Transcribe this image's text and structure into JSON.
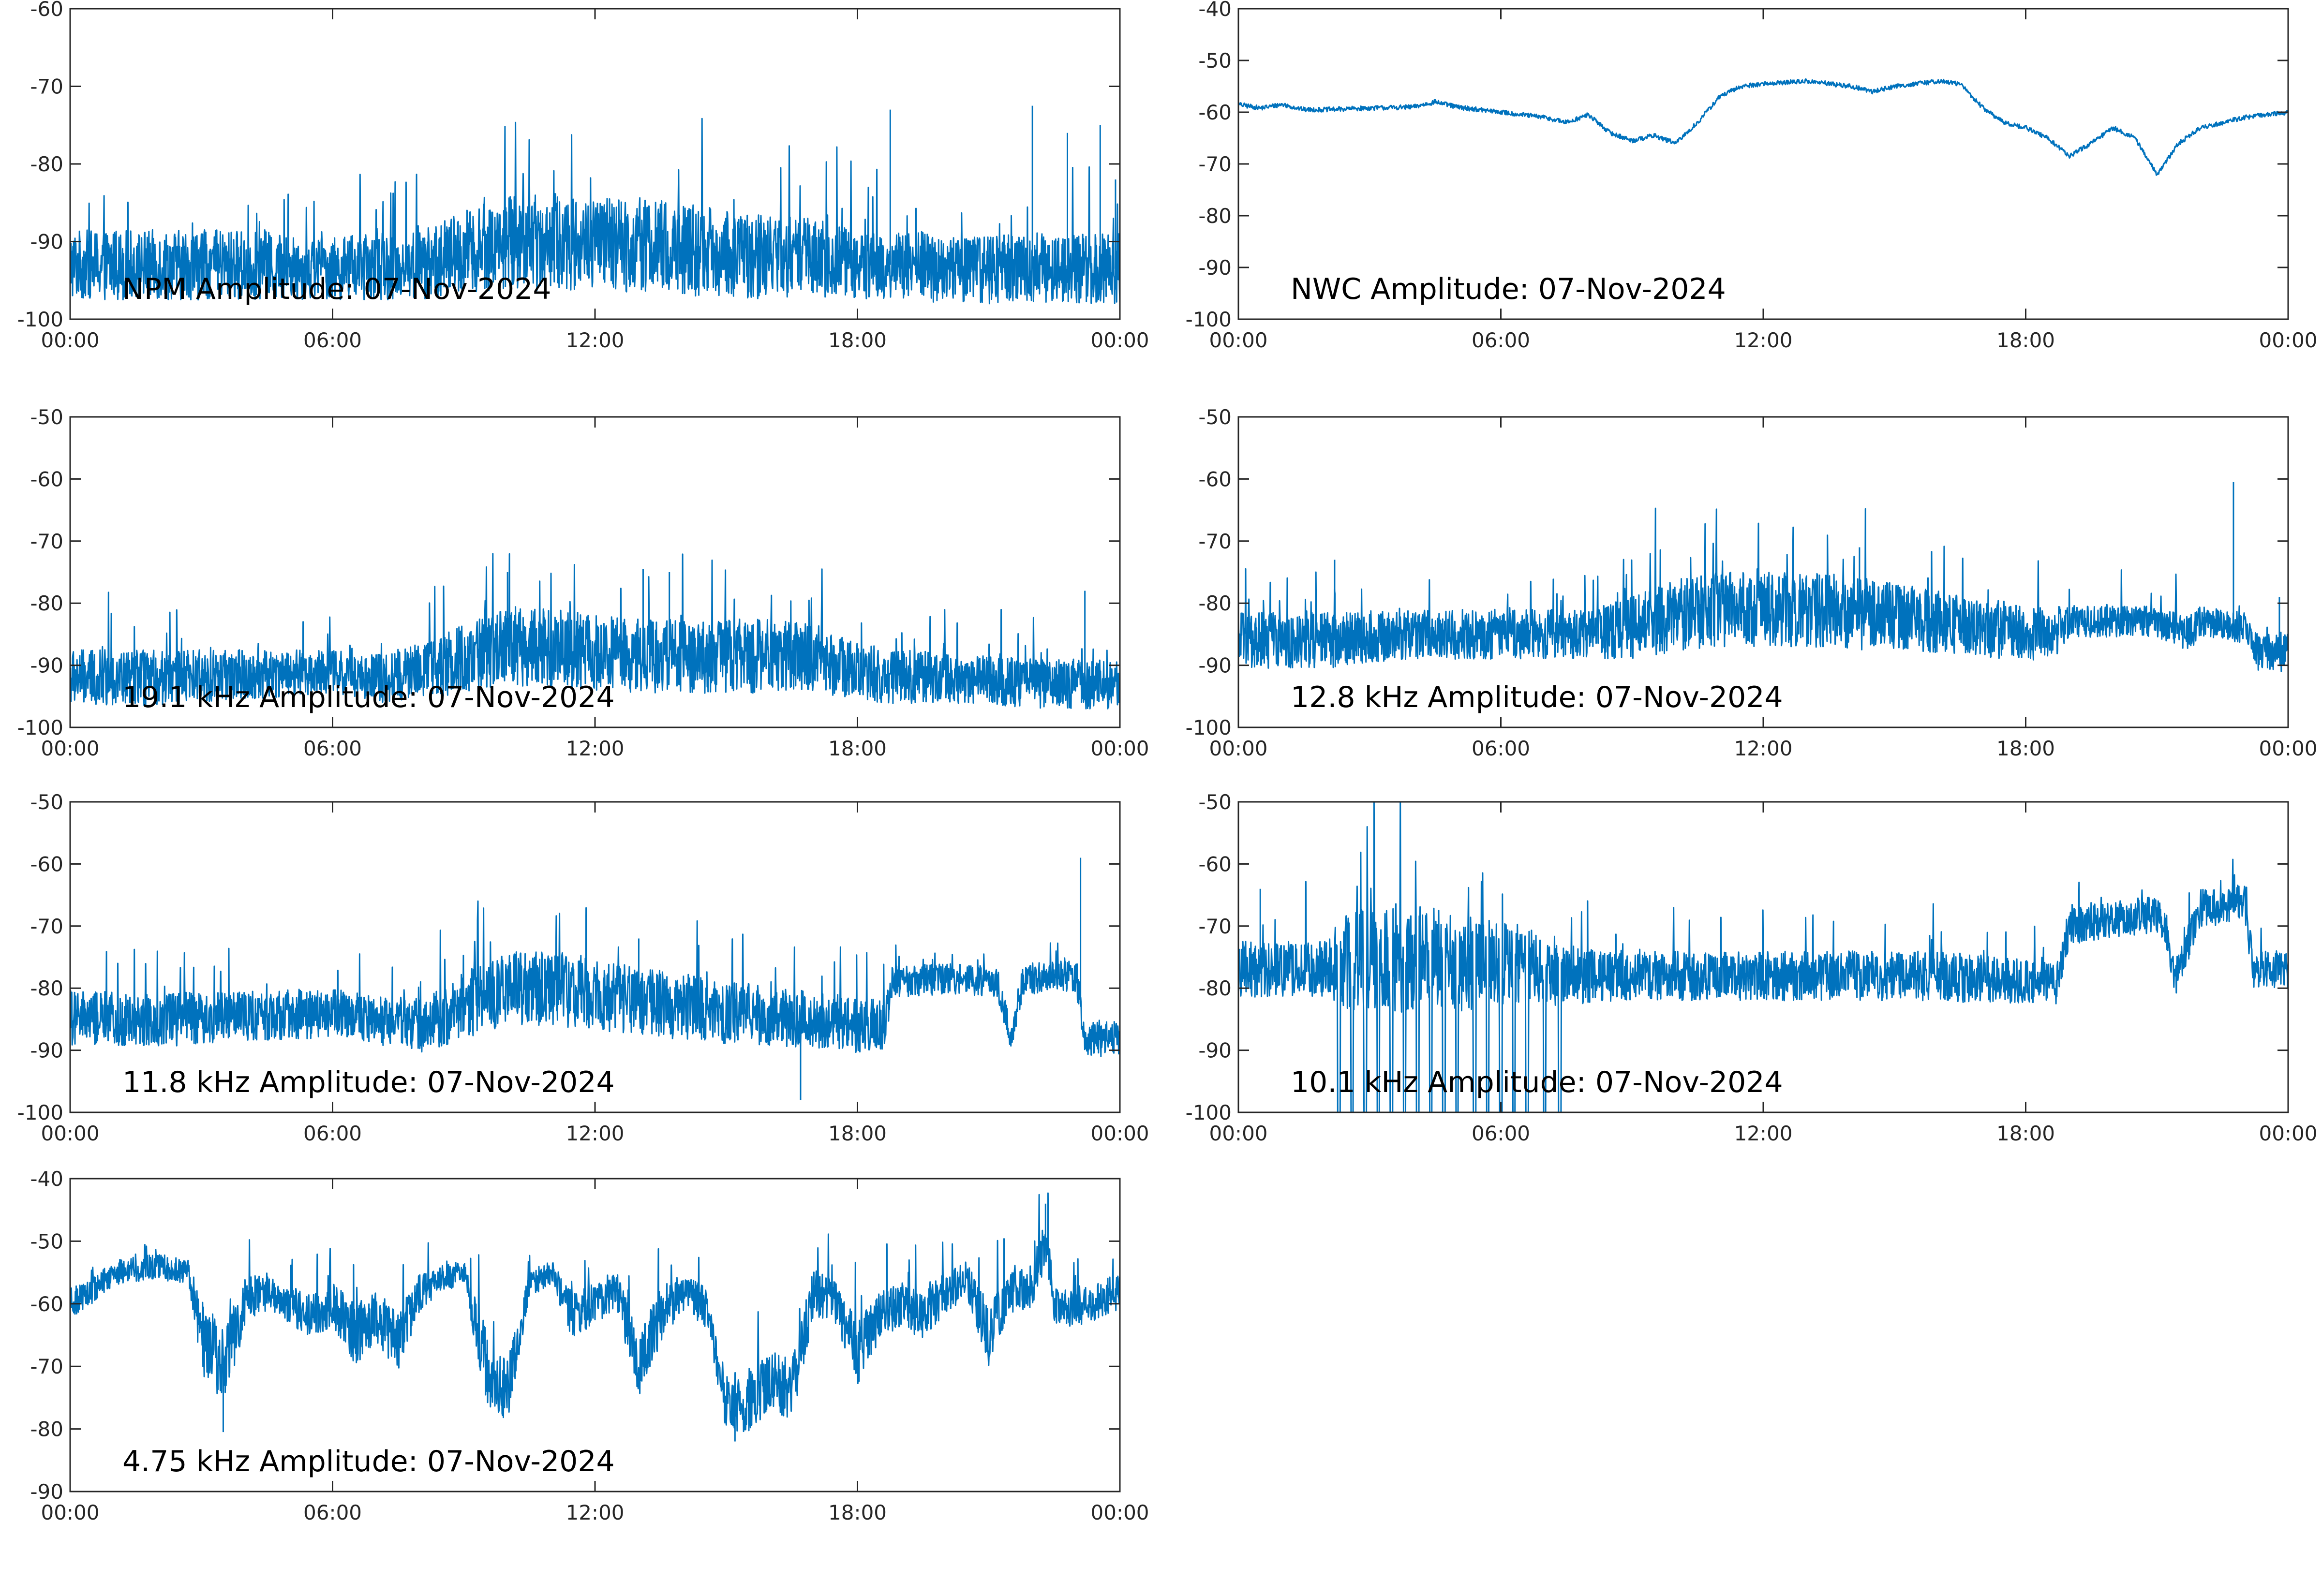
{
  "chart_data": [
    {
      "type": "line",
      "title": "NPM Amplitude: 07-Nov-2024",
      "xlim": [
        "00:00",
        "24:00"
      ],
      "ylim": [
        -100,
        -60
      ],
      "xticks": [
        "00:00",
        "06:00",
        "12:00",
        "18:00",
        "00:00"
      ],
      "yticks": [
        "-60",
        "-70",
        "-80",
        "-90",
        "-100"
      ],
      "line_color": "#0072BD",
      "grid": false,
      "series": [
        {
          "x_hours": [
            0,
            2,
            4,
            6,
            8,
            9,
            10,
            11,
            12,
            13,
            14,
            15,
            16,
            17,
            18,
            19,
            20,
            21,
            22,
            23,
            24
          ],
          "mean": [
            -93,
            -93,
            -93,
            -93.5,
            -93,
            -91.5,
            -90,
            -90,
            -90.5,
            -90.5,
            -91,
            -91.5,
            -92,
            -92,
            -93,
            -93,
            -93.5,
            -93.5,
            -93.5,
            -93.5,
            -93.5
          ],
          "spread": [
            9,
            9,
            9,
            8,
            9,
            11,
            12,
            13,
            12,
            12,
            12,
            11,
            11,
            10,
            9,
            9,
            9,
            9,
            9,
            9,
            9
          ],
          "spikes": [
            {
              "x": 18.75,
              "y": -73
            },
            {
              "x": 22.0,
              "y": -72.5
            },
            {
              "x": 22.8,
              "y": -76
            },
            {
              "x": 23.55,
              "y": -75
            },
            {
              "x": 23.9,
              "y": -82
            }
          ]
        }
      ]
    },
    {
      "type": "line",
      "title": "NWC Amplitude: 07-Nov-2024",
      "xlim": [
        "00:00",
        "24:00"
      ],
      "ylim": [
        -100,
        -40
      ],
      "xticks": [
        "00:00",
        "06:00",
        "12:00",
        "18:00",
        "00:00"
      ],
      "yticks": [
        "-40",
        "-50",
        "-60",
        "-70",
        "-80",
        "-90",
        "-100"
      ],
      "line_color": "#0072BD",
      "grid": false,
      "series": [
        {
          "x_hours": [
            0,
            0.5,
            1.0,
            1.5,
            2.0,
            3.0,
            4.0,
            4.5,
            5.0,
            6.0,
            7.0,
            7.5,
            8.0,
            8.5,
            9.0,
            9.5,
            10.0,
            10.5,
            11.0,
            11.5,
            12.0,
            13.0,
            14.0,
            14.5,
            15.0,
            16.0,
            16.5,
            17.0,
            17.5,
            18.0,
            18.5,
            19.0,
            19.5,
            20.0,
            20.5,
            21.0,
            21.5,
            22.0,
            23.0,
            24.0
          ],
          "values": [
            -58.5,
            -59.2,
            -58.5,
            -59.5,
            -59.5,
            -59.2,
            -59,
            -58,
            -59,
            -60,
            -61,
            -62,
            -60.5,
            -64,
            -65.5,
            -64.5,
            -66,
            -62,
            -57,
            -55,
            -54.5,
            -54,
            -55,
            -56,
            -55,
            -54,
            -54.5,
            -59,
            -62,
            -63,
            -65,
            -68.5,
            -66,
            -63,
            -65,
            -72,
            -66,
            -63,
            -61,
            -60
          ]
        }
      ]
    },
    {
      "type": "line",
      "title": "19.1 kHz Amplitude: 07-Nov-2024",
      "xlim": [
        "00:00",
        "24:00"
      ],
      "ylim": [
        -100,
        -50
      ],
      "xticks": [
        "00:00",
        "06:00",
        "12:00",
        "18:00",
        "00:00"
      ],
      "yticks": [
        "-50",
        "-60",
        "-70",
        "-80",
        "-90",
        "-100"
      ],
      "line_color": "#0072BD",
      "grid": false,
      "series": [
        {
          "x_hours": [
            0,
            2,
            4,
            6,
            7,
            8,
            9,
            10,
            11,
            12,
            13,
            14,
            15,
            16,
            17,
            18,
            19,
            20,
            21,
            22,
            23,
            24
          ],
          "mean": [
            -92,
            -92,
            -91.5,
            -91,
            -92,
            -91,
            -89,
            -87,
            -87,
            -88,
            -88.5,
            -88.5,
            -88.5,
            -88.5,
            -89,
            -91,
            -92,
            -92,
            -92.5,
            -93,
            -93,
            -93
          ],
          "spread": [
            9,
            9,
            8,
            7,
            8,
            9,
            11,
            13,
            13,
            12,
            12,
            12,
            12,
            12,
            11,
            9,
            9,
            8,
            8,
            8,
            8,
            8
          ],
          "spikes": [
            {
              "x": 10.0,
              "y": -75
            },
            {
              "x": 13.1,
              "y": -74.5
            },
            {
              "x": 13.7,
              "y": -75
            },
            {
              "x": 23.2,
              "y": -78
            }
          ]
        }
      ]
    },
    {
      "type": "line",
      "title": "12.8 kHz Amplitude: 07-Nov-2024",
      "xlim": [
        "00:00",
        "24:00"
      ],
      "ylim": [
        -100,
        -50
      ],
      "xticks": [
        "00:00",
        "06:00",
        "12:00",
        "18:00",
        "00:00"
      ],
      "yticks": [
        "-50",
        "-60",
        "-70",
        "-80",
        "-90",
        "-100"
      ],
      "line_color": "#0072BD",
      "grid": false,
      "series": [
        {
          "x_hours": [
            0,
            2,
            4,
            6,
            8,
            9,
            10,
            11,
            12,
            13,
            14,
            15,
            16,
            17,
            18,
            18.7,
            19,
            20,
            21,
            21.7,
            22,
            23,
            23.3,
            24
          ],
          "mean": [
            -86,
            -86,
            -85,
            -85,
            -85,
            -84,
            -82,
            -81,
            -81,
            -81,
            -81.5,
            -82,
            -83,
            -84,
            -85,
            -85,
            -83,
            -83,
            -83,
            -85,
            -83,
            -84,
            -88,
            -88
          ],
          "spread": [
            9,
            9,
            8,
            8,
            8,
            10,
            12,
            12,
            12,
            12,
            12,
            11,
            10,
            9,
            9,
            8,
            5,
            5,
            5,
            6,
            5,
            5,
            6,
            6
          ],
          "spikes": [
            {
              "x": 22.75,
              "y": -60.5
            },
            {
              "x": 2.2,
              "y": -73
            },
            {
              "x": 14.2,
              "y": -71
            },
            {
              "x": 23.8,
              "y": -79
            }
          ]
        }
      ]
    },
    {
      "type": "line",
      "title": "11.8 kHz Amplitude: 07-Nov-2024",
      "xlim": [
        "00:00",
        "24:00"
      ],
      "ylim": [
        -100,
        -50
      ],
      "xticks": [
        "00:00",
        "06:00",
        "12:00",
        "18:00",
        "00:00"
      ],
      "yticks": [
        "-50",
        "-60",
        "-70",
        "-80",
        "-90",
        "-100"
      ],
      "line_color": "#0072BD",
      "grid": false,
      "series": [
        {
          "x_hours": [
            0,
            2,
            4,
            6,
            7,
            8,
            9,
            10,
            11,
            12,
            13,
            14,
            15,
            16,
            17,
            18,
            18.6,
            18.8,
            20,
            21.2,
            21.5,
            21.8,
            23,
            23.2,
            23.4,
            24
          ],
          "mean": [
            -85,
            -85,
            -84.5,
            -84,
            -85,
            -86,
            -83,
            -80,
            -80,
            -81,
            -82,
            -83,
            -84,
            -84.5,
            -85,
            -86,
            -86,
            -79,
            -78.5,
            -79,
            -88,
            -78.5,
            -78,
            -88,
            -88,
            -88
          ],
          "spread": [
            9,
            9,
            8,
            8,
            8,
            9,
            11,
            12,
            12,
            12,
            11,
            11,
            10,
            10,
            9,
            9,
            8,
            5,
            5,
            5,
            5,
            5,
            5,
            6,
            6,
            6
          ],
          "spikes": [
            {
              "x": 23.1,
              "y": -59
            },
            {
              "x": 13.0,
              "y": -72
            },
            {
              "x": 16.7,
              "y": -98
            }
          ]
        }
      ]
    },
    {
      "type": "line",
      "title": "10.1 kHz Amplitude: 07-Nov-2024",
      "xlim": [
        "00:00",
        "24:00"
      ],
      "ylim": [
        -100,
        -50
      ],
      "xticks": [
        "00:00",
        "06:00",
        "12:00",
        "18:00",
        "00:00"
      ],
      "yticks": [
        "-50",
        "-60",
        "-70",
        "-80",
        "-90",
        "-100"
      ],
      "line_color": "#0072BD",
      "grid": false,
      "series": [
        {
          "x_hours": [
            0,
            1,
            2,
            2.3,
            3,
            4,
            5,
            6,
            7,
            7.4,
            8,
            9,
            10,
            11,
            12,
            13,
            14,
            15,
            16,
            17,
            18,
            18.7,
            19,
            20,
            21,
            21.2,
            21.4,
            22,
            22.5,
            23,
            23.2,
            24
          ],
          "mean": [
            -77,
            -77,
            -77,
            -76,
            -75,
            -75,
            -76,
            -76,
            -77,
            -78,
            -78,
            -78,
            -78,
            -78,
            -78,
            -78,
            -78,
            -78,
            -78,
            -78.5,
            -79,
            -79,
            -70,
            -69,
            -68,
            -70,
            -79,
            -67,
            -67,
            -66,
            -77,
            -77
          ],
          "spread": [
            9,
            9,
            9,
            14,
            18,
            18,
            16,
            13,
            12,
            10,
            9,
            8,
            8,
            8,
            8,
            8,
            8,
            8,
            8,
            8,
            7,
            7,
            6,
            6,
            6,
            6,
            6,
            6,
            6,
            6,
            6,
            6
          ],
          "dropouts_hours": [
            2.3,
            2.6,
            2.9,
            3.2,
            3.5,
            3.8,
            4.1,
            4.4,
            4.7,
            5.0,
            5.4,
            5.7,
            6.0,
            6.3,
            6.6,
            7.0,
            7.35
          ],
          "spikes": [
            {
              "x": 0.5,
              "y": -64
            }
          ]
        }
      ]
    },
    {
      "type": "line",
      "title": "4.75 kHz Amplitude: 07-Nov-2024",
      "xlim": [
        "00:00",
        "24:00"
      ],
      "ylim": [
        -90,
        -40
      ],
      "xticks": [
        "00:00",
        "06:00",
        "12:00",
        "18:00",
        "00:00"
      ],
      "yticks": [
        "-40",
        "-50",
        "-60",
        "-70",
        "-80",
        "-90"
      ],
      "line_color": "#0072BD",
      "grid": false,
      "series": [
        {
          "x_hours": [
            0,
            0.5,
            1,
            2,
            2.7,
            3.0,
            3.5,
            4,
            4.5,
            5,
            5.5,
            6,
            6.5,
            7,
            7.5,
            8,
            8.5,
            9,
            9.5,
            10,
            10.5,
            11,
            11.5,
            12,
            12.5,
            13,
            13.5,
            14,
            14.5,
            15,
            15.5,
            16,
            16.5,
            17,
            17.5,
            18,
            18.5,
            19,
            19.5,
            20,
            20.5,
            21,
            21.5,
            22,
            22.3,
            22.5,
            23,
            24
          ],
          "mean": [
            -60,
            -58,
            -55,
            -54,
            -55,
            -65,
            -70,
            -60,
            -58,
            -60,
            -62,
            -60,
            -65,
            -62,
            -66,
            -58,
            -56,
            -55,
            -70,
            -74,
            -57,
            -55,
            -62,
            -60,
            -58,
            -70,
            -62,
            -58,
            -60,
            -75,
            -76,
            -72,
            -74,
            -58,
            -60,
            -68,
            -62,
            -60,
            -62,
            -58,
            -56,
            -65,
            -58,
            -57,
            -50,
            -60,
            -61,
            -58
          ],
          "spread": [
            5,
            4,
            4,
            4,
            4,
            12,
            12,
            8,
            6,
            6,
            7,
            7,
            10,
            8,
            10,
            6,
            4,
            4,
            12,
            10,
            4,
            4,
            8,
            6,
            6,
            10,
            9,
            6,
            7,
            10,
            10,
            9,
            10,
            8,
            7,
            10,
            8,
            7,
            8,
            7,
            6,
            10,
            7,
            7,
            8,
            6,
            6,
            6
          ],
          "spikes": [
            {
              "x": 22.3,
              "y": -44
            },
            {
              "x": 3.5,
              "y": -80.5
            },
            {
              "x": 15.2,
              "y": -82
            }
          ]
        }
      ]
    }
  ]
}
